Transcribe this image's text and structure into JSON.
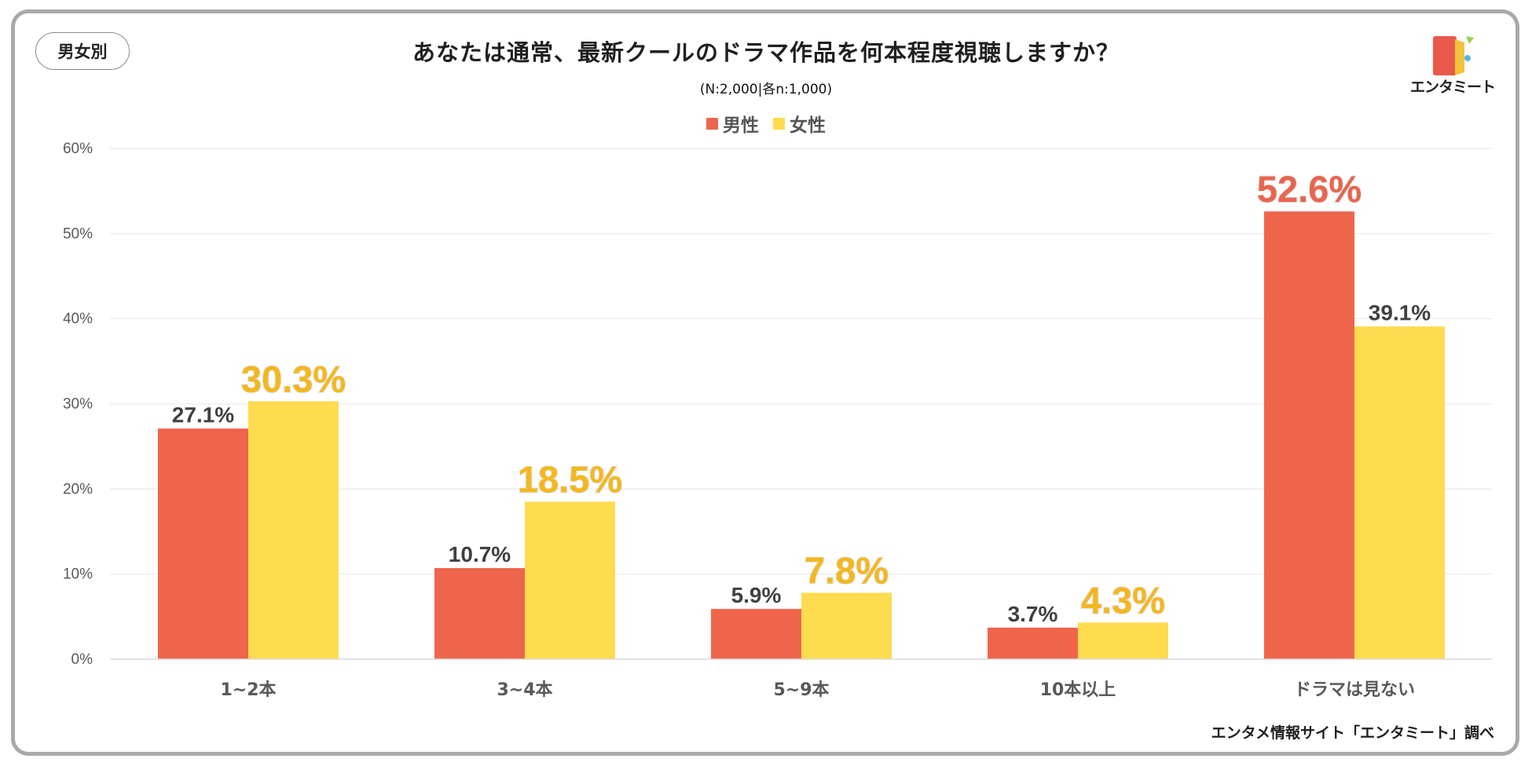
{
  "tag": "男女別",
  "title": "あなたは通常、最新クールのドラマ作品を何本程度視聴しますか？",
  "subtitle": "(N:2,000|各n:1,000)",
  "logo": {
    "text": "エンタミート",
    "colors": [
      "#e8594a",
      "#f2c23a",
      "#5ab4e3",
      "#9bd04a"
    ]
  },
  "credit": "エンタメ情報サイト「エンタミート」調べ",
  "colors": {
    "male": "#ef654b",
    "female": "#fedb4f",
    "highlight_male": "#e8654e",
    "highlight_female": "#f4b71e",
    "label": "#404040",
    "axis_text": "#595959",
    "grid": "#e6e6e6"
  },
  "chart_data": {
    "type": "bar",
    "categories": [
      "1~2本",
      "3~4本",
      "5~9本",
      "10本以上",
      "ドラマは見ない"
    ],
    "series": [
      {
        "name": "男性",
        "values": [
          27.1,
          10.7,
          5.9,
          3.7,
          52.6
        ],
        "labels": [
          "27.1%",
          "10.7%",
          "5.9%",
          "3.7%",
          "52.6%"
        ],
        "highlight": [
          false,
          false,
          false,
          false,
          true
        ]
      },
      {
        "name": "女性",
        "values": [
          30.3,
          18.5,
          7.8,
          4.3,
          39.1
        ],
        "labels": [
          "30.3%",
          "18.5%",
          "7.8%",
          "4.3%",
          "39.1%"
        ],
        "highlight": [
          true,
          true,
          true,
          true,
          false
        ]
      }
    ],
    "ylim": [
      0,
      60
    ],
    "yticks": [
      "0%",
      "10%",
      "20%",
      "30%",
      "40%",
      "50%",
      "60%"
    ],
    "ytick_values": [
      0,
      10,
      20,
      30,
      40,
      50,
      60
    ],
    "legend": "top-center",
    "grid": true
  }
}
